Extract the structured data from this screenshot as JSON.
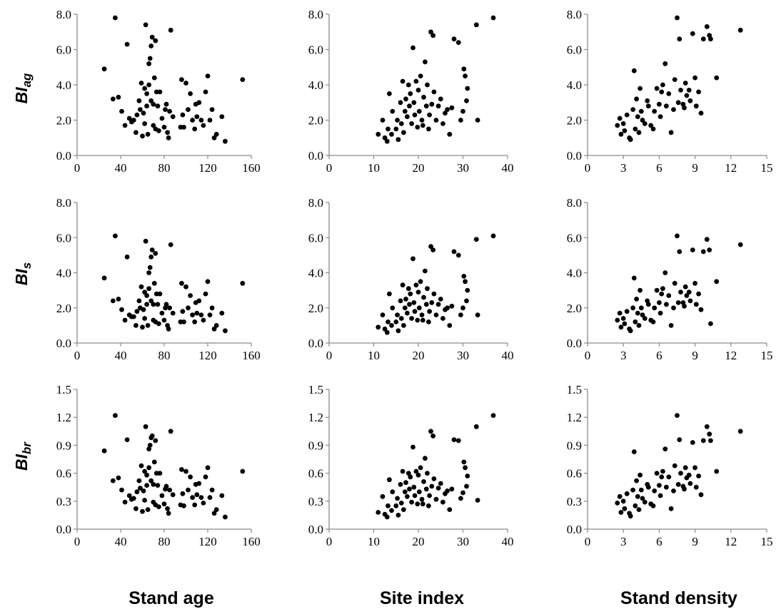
{
  "figure": {
    "row_labels": [
      {
        "main": "BI",
        "sub": "ag"
      },
      {
        "main": "BI",
        "sub": "s"
      },
      {
        "main": "BI",
        "sub": "br"
      }
    ],
    "column_titles": [
      "Stand age",
      "Site index",
      "Stand density"
    ]
  },
  "chart_data": [
    {
      "type": "scatter",
      "panel": "BIag vs Stand age",
      "row": 0,
      "col": 0,
      "xlabel": "",
      "ylabel": "BIag",
      "xlim": [
        0,
        160
      ],
      "ylim": [
        0,
        8
      ],
      "xticks": [
        "0",
        "40",
        "80",
        "120",
        "160"
      ],
      "yticks": [
        "0.0",
        "2.0",
        "4.0",
        "6.0",
        "8.0"
      ],
      "grid": false,
      "x": [
        25,
        33,
        35,
        38,
        41,
        44,
        46,
        48,
        50,
        52,
        54,
        55,
        57,
        58,
        59,
        60,
        61,
        62,
        62,
        63,
        64,
        64,
        65,
        66,
        66,
        67,
        68,
        68,
        69,
        70,
        70,
        71,
        72,
        72,
        73,
        74,
        75,
        76,
        78,
        80,
        81,
        82,
        83,
        84,
        85,
        86,
        88,
        95,
        96,
        97,
        98,
        100,
        102,
        104,
        106,
        108,
        109,
        110,
        112,
        114,
        116,
        118,
        120,
        122,
        124,
        126,
        128,
        133,
        136,
        152
      ],
      "y": [
        4.9,
        3.2,
        7.8,
        3.3,
        2.5,
        1.7,
        6.3,
        2.1,
        1.9,
        2.0,
        1.3,
        2.3,
        3.1,
        2.6,
        4.1,
        1.1,
        2.4,
        3.8,
        1.8,
        7.4,
        3.5,
        2.8,
        1.2,
        4.0,
        5.2,
        5.5,
        6.2,
        3.1,
        6.7,
        1.7,
        2.9,
        4.4,
        1.5,
        6.5,
        3.6,
        2.8,
        1.4,
        3.6,
        2.1,
        1.6,
        2.6,
        2.9,
        1.3,
        1.0,
        2.5,
        7.1,
        2.2,
        1.6,
        4.3,
        2.3,
        1.6,
        4.1,
        2.6,
        3.5,
        2.0,
        1.5,
        2.9,
        2.2,
        3.0,
        2.0,
        1.7,
        3.6,
        4.5,
        2.0,
        2.6,
        1.0,
        1.2,
        2.2,
        0.8,
        4.3
      ]
    },
    {
      "type": "scatter",
      "panel": "BIag vs Site index",
      "row": 0,
      "col": 1,
      "xlabel": "",
      "ylabel": "BIag",
      "xlim": [
        0,
        40
      ],
      "ylim": [
        0,
        8
      ],
      "xticks": [
        "0",
        "10",
        "20",
        "30",
        "40"
      ],
      "yticks": [
        "0.0",
        "2.0",
        "4.0",
        "6.0",
        "8.0"
      ],
      "grid": false,
      "x": [
        11.0,
        12.0,
        12.5,
        13.0,
        13.2,
        13.5,
        14.0,
        14.2,
        15.0,
        15.3,
        15.5,
        16.0,
        16.2,
        16.5,
        16.7,
        17.0,
        17.2,
        17.5,
        17.8,
        18.0,
        18.2,
        18.5,
        18.8,
        19.0,
        19.2,
        19.5,
        19.8,
        20.0,
        20.2,
        20.5,
        20.8,
        21.0,
        21.2,
        21.5,
        21.8,
        22.0,
        22.3,
        22.5,
        22.8,
        23.0,
        23.3,
        23.5,
        24.0,
        24.5,
        25.0,
        25.5,
        26.0,
        26.5,
        27.0,
        27.5,
        28.0,
        29.0,
        29.5,
        30.0,
        30.2,
        30.5,
        30.8,
        31.0,
        33.0,
        33.3,
        36.8
      ],
      "y": [
        1.2,
        2.0,
        1.0,
        0.8,
        1.5,
        3.5,
        1.2,
        2.5,
        1.5,
        2.0,
        0.9,
        3.0,
        1.8,
        4.2,
        1.3,
        2.5,
        3.2,
        2.2,
        4.0,
        2.8,
        3.5,
        1.8,
        6.1,
        3.0,
        2.3,
        4.2,
        1.6,
        3.7,
        2.5,
        4.5,
        2.0,
        1.7,
        3.3,
        5.3,
        2.8,
        4.0,
        1.5,
        2.3,
        7.0,
        2.9,
        6.8,
        3.6,
        2.0,
        2.8,
        3.2,
        1.8,
        2.4,
        2.6,
        1.2,
        2.7,
        6.6,
        6.4,
        2.0,
        2.5,
        4.9,
        4.5,
        3.1,
        3.8,
        7.4,
        2.0,
        7.8
      ]
    },
    {
      "type": "scatter",
      "panel": "BIag vs Stand density",
      "row": 0,
      "col": 2,
      "xlabel": "",
      "ylabel": "BIag",
      "xlim": [
        0,
        15
      ],
      "ylim": [
        0,
        8
      ],
      "xticks": [
        "0",
        "3",
        "6",
        "9",
        "12",
        "15"
      ],
      "yticks": [
        "0.0",
        "2.0",
        "4.0",
        "6.0",
        "8.0"
      ],
      "grid": false,
      "x": [
        2.5,
        2.7,
        2.8,
        3.0,
        3.1,
        3.3,
        3.5,
        3.6,
        3.8,
        3.9,
        4.0,
        4.1,
        4.2,
        4.3,
        4.4,
        4.5,
        4.6,
        4.8,
        5.0,
        5.1,
        5.3,
        5.5,
        5.6,
        5.8,
        6.0,
        6.1,
        6.2,
        6.3,
        6.5,
        6.6,
        6.8,
        7.0,
        7.2,
        7.3,
        7.5,
        7.6,
        7.7,
        7.8,
        8.0,
        8.1,
        8.2,
        8.3,
        8.5,
        8.6,
        8.8,
        9.0,
        9.1,
        9.3,
        9.5,
        9.7,
        10.0,
        10.2,
        10.3,
        10.8,
        12.8
      ],
      "y": [
        1.7,
        2.1,
        1.2,
        1.8,
        1.4,
        2.3,
        1.0,
        0.9,
        2.6,
        4.8,
        1.5,
        3.2,
        2.2,
        1.3,
        3.8,
        2.5,
        2.0,
        1.8,
        3.1,
        2.8,
        1.7,
        1.5,
        2.5,
        3.8,
        2.9,
        2.2,
        3.6,
        4.0,
        5.2,
        2.8,
        3.5,
        1.3,
        2.6,
        4.3,
        7.8,
        3.0,
        6.6,
        3.7,
        2.9,
        2.7,
        4.1,
        3.4,
        3.7,
        3.1,
        6.9,
        4.4,
        2.8,
        3.6,
        2.4,
        6.6,
        7.3,
        6.8,
        6.6,
        4.4,
        7.1
      ]
    },
    {
      "type": "scatter",
      "panel": "BIs vs Stand age",
      "row": 1,
      "col": 0,
      "xlabel": "",
      "ylabel": "BIs",
      "xlim": [
        0,
        160
      ],
      "ylim": [
        0,
        8
      ],
      "xticks": [
        "0",
        "40",
        "80",
        "120",
        "160"
      ],
      "yticks": [
        "0.0",
        "2.0",
        "4.0",
        "6.0",
        "8.0"
      ],
      "grid": false,
      "x": [
        25,
        33,
        35,
        38,
        41,
        44,
        46,
        48,
        50,
        52,
        54,
        55,
        57,
        58,
        59,
        60,
        61,
        62,
        62,
        63,
        64,
        64,
        65,
        66,
        66,
        67,
        68,
        68,
        69,
        70,
        70,
        71,
        72,
        72,
        73,
        74,
        75,
        76,
        78,
        80,
        81,
        82,
        83,
        84,
        85,
        86,
        88,
        95,
        96,
        97,
        98,
        100,
        102,
        104,
        106,
        108,
        109,
        110,
        112,
        114,
        116,
        118,
        120,
        122,
        124,
        126,
        128,
        133,
        136,
        152
      ],
      "y": [
        3.7,
        2.4,
        6.1,
        2.5,
        1.9,
        1.3,
        4.9,
        1.6,
        1.5,
        1.5,
        1.0,
        1.8,
        2.4,
        2.0,
        3.2,
        0.9,
        1.9,
        2.9,
        1.4,
        5.8,
        2.7,
        2.2,
        1.0,
        3.1,
        4.0,
        4.3,
        4.9,
        2.4,
        5.3,
        1.3,
        2.2,
        3.4,
        1.2,
        5.1,
        2.8,
        2.2,
        1.1,
        2.8,
        1.7,
        1.3,
        2.0,
        2.2,
        1.0,
        0.8,
        2.0,
        5.6,
        1.7,
        1.2,
        3.4,
        1.8,
        1.2,
        3.2,
        2.0,
        2.7,
        1.6,
        1.2,
        2.3,
        1.7,
        2.4,
        1.6,
        1.3,
        2.8,
        3.5,
        1.6,
        2.0,
        0.8,
        1.0,
        1.7,
        0.7,
        3.4
      ]
    },
    {
      "type": "scatter",
      "panel": "BIs vs Site index",
      "row": 1,
      "col": 1,
      "xlabel": "",
      "ylabel": "BIs",
      "xlim": [
        0,
        40
      ],
      "ylim": [
        0,
        8
      ],
      "xticks": [
        "0",
        "10",
        "20",
        "30",
        "40"
      ],
      "yticks": [
        "0.0",
        "2.0",
        "4.0",
        "6.0",
        "8.0"
      ],
      "grid": false,
      "x": [
        11.0,
        12.0,
        12.5,
        13.0,
        13.2,
        13.5,
        14.0,
        14.2,
        15.0,
        15.3,
        15.5,
        16.0,
        16.2,
        16.5,
        16.7,
        17.0,
        17.2,
        17.5,
        17.8,
        18.0,
        18.2,
        18.5,
        18.8,
        19.0,
        19.2,
        19.5,
        19.8,
        20.0,
        20.2,
        20.5,
        20.8,
        21.0,
        21.2,
        21.5,
        21.8,
        22.0,
        22.3,
        22.5,
        22.8,
        23.0,
        23.3,
        23.5,
        24.0,
        24.5,
        25.0,
        25.5,
        26.0,
        26.5,
        27.0,
        27.5,
        28.0,
        29.0,
        29.5,
        30.0,
        30.2,
        30.5,
        30.8,
        31.0,
        33.0,
        33.3,
        36.8
      ],
      "y": [
        0.9,
        1.6,
        0.8,
        0.6,
        1.2,
        2.8,
        1.0,
        2.0,
        1.2,
        1.6,
        0.7,
        2.4,
        1.4,
        3.3,
        1.0,
        2.0,
        2.5,
        1.7,
        3.1,
        2.2,
        2.8,
        1.4,
        4.8,
        2.3,
        1.8,
        3.3,
        1.3,
        2.9,
        2.0,
        3.5,
        1.6,
        1.3,
        2.6,
        4.1,
        2.2,
        3.1,
        1.2,
        1.8,
        5.5,
        2.3,
        5.3,
        2.8,
        1.6,
        2.2,
        2.5,
        1.4,
        1.9,
        2.0,
        1.0,
        2.1,
        5.2,
        5.0,
        1.6,
        2.0,
        3.8,
        3.5,
        2.4,
        3.0,
        5.9,
        1.6,
        6.1
      ]
    },
    {
      "type": "scatter",
      "panel": "BIs vs Stand density",
      "row": 1,
      "col": 2,
      "xlabel": "",
      "ylabel": "BIs",
      "xlim": [
        0,
        15
      ],
      "ylim": [
        0,
        8
      ],
      "xticks": [
        "0",
        "3",
        "6",
        "9",
        "12",
        "15"
      ],
      "yticks": [
        "0.0",
        "2.0",
        "4.0",
        "6.0",
        "8.0"
      ],
      "grid": false,
      "x": [
        2.5,
        2.7,
        2.8,
        3.0,
        3.1,
        3.3,
        3.5,
        3.6,
        3.8,
        3.9,
        4.0,
        4.1,
        4.2,
        4.3,
        4.4,
        4.5,
        4.6,
        4.8,
        5.0,
        5.1,
        5.3,
        5.5,
        5.6,
        5.8,
        6.0,
        6.1,
        6.2,
        6.3,
        6.5,
        6.6,
        6.8,
        7.0,
        7.2,
        7.3,
        7.5,
        7.6,
        7.7,
        7.8,
        8.0,
        8.1,
        8.2,
        8.3,
        8.5,
        8.6,
        8.8,
        9.0,
        9.1,
        9.3,
        9.5,
        9.7,
        10.0,
        10.2,
        10.3,
        10.8,
        12.8
      ],
      "y": [
        1.3,
        1.7,
        0.9,
        1.4,
        1.1,
        1.8,
        0.8,
        0.7,
        2.0,
        3.7,
        1.2,
        2.5,
        1.7,
        1.0,
        3.0,
        2.0,
        1.6,
        1.4,
        2.4,
        2.2,
        1.3,
        1.2,
        2.0,
        3.0,
        2.3,
        1.7,
        2.8,
        3.1,
        4.0,
        2.2,
        2.7,
        1.0,
        2.0,
        3.4,
        6.1,
        2.3,
        5.2,
        2.9,
        2.3,
        2.1,
        3.2,
        2.7,
        2.9,
        2.4,
        5.3,
        3.4,
        2.2,
        2.8,
        1.9,
        5.2,
        5.9,
        5.3,
        1.1,
        3.5,
        5.6
      ]
    },
    {
      "type": "scatter",
      "panel": "BIbr vs Stand age",
      "row": 2,
      "col": 0,
      "xlabel": "",
      "ylabel": "BIbr",
      "xlim": [
        0,
        160
      ],
      "ylim": [
        0,
        1.5
      ],
      "xticks": [
        "0",
        "40",
        "80",
        "120",
        "160"
      ],
      "yticks": [
        "0.0",
        "0.3",
        "0.6",
        "0.9",
        "1.2",
        "1.5"
      ],
      "grid": false,
      "x": [
        25,
        33,
        35,
        38,
        41,
        44,
        46,
        48,
        50,
        52,
        54,
        55,
        57,
        58,
        59,
        60,
        61,
        62,
        62,
        63,
        64,
        64,
        65,
        66,
        66,
        67,
        68,
        68,
        69,
        70,
        70,
        71,
        72,
        72,
        73,
        74,
        75,
        76,
        78,
        80,
        81,
        82,
        83,
        84,
        85,
        86,
        88,
        95,
        96,
        97,
        98,
        100,
        102,
        104,
        106,
        108,
        109,
        110,
        112,
        114,
        116,
        118,
        120,
        122,
        124,
        126,
        128,
        133,
        136,
        152
      ],
      "y": [
        0.84,
        0.52,
        1.22,
        0.55,
        0.42,
        0.29,
        0.96,
        0.36,
        0.32,
        0.33,
        0.22,
        0.4,
        0.52,
        0.44,
        0.68,
        0.19,
        0.41,
        0.62,
        0.31,
        1.1,
        0.58,
        0.47,
        0.21,
        0.66,
        0.86,
        0.9,
        0.98,
        0.52,
        1.0,
        0.29,
        0.48,
        0.72,
        0.26,
        0.95,
        0.6,
        0.47,
        0.24,
        0.6,
        0.36,
        0.27,
        0.43,
        0.46,
        0.22,
        0.17,
        0.42,
        1.05,
        0.37,
        0.26,
        0.64,
        0.38,
        0.25,
        0.62,
        0.42,
        0.56,
        0.34,
        0.26,
        0.48,
        0.37,
        0.49,
        0.34,
        0.28,
        0.56,
        0.66,
        0.34,
        0.42,
        0.17,
        0.21,
        0.36,
        0.13,
        0.62
      ]
    },
    {
      "type": "scatter",
      "panel": "BIbr vs Site index",
      "row": 2,
      "col": 1,
      "xlabel": "",
      "ylabel": "BIbr",
      "xlim": [
        0,
        40
      ],
      "ylim": [
        0,
        1.5
      ],
      "xticks": [
        "0",
        "10",
        "20",
        "30",
        "40"
      ],
      "yticks": [
        "0.0",
        "0.3",
        "0.6",
        "0.9",
        "1.2",
        "1.5"
      ],
      "grid": false,
      "x": [
        11.0,
        12.0,
        12.5,
        13.0,
        13.2,
        13.5,
        14.0,
        14.2,
        15.0,
        15.3,
        15.5,
        16.0,
        16.2,
        16.5,
        16.7,
        17.0,
        17.2,
        17.5,
        17.8,
        18.0,
        18.2,
        18.5,
        18.8,
        19.0,
        19.2,
        19.5,
        19.8,
        20.0,
        20.2,
        20.5,
        20.8,
        21.0,
        21.2,
        21.5,
        21.8,
        22.0,
        22.3,
        22.5,
        22.8,
        23.0,
        23.3,
        23.5,
        24.0,
        24.5,
        25.0,
        25.5,
        26.0,
        26.5,
        27.0,
        27.5,
        28.0,
        29.0,
        29.5,
        30.0,
        30.2,
        30.5,
        30.8,
        31.0,
        33.0,
        33.3,
        36.8
      ],
      "y": [
        0.18,
        0.35,
        0.16,
        0.13,
        0.25,
        0.53,
        0.2,
        0.4,
        0.25,
        0.33,
        0.15,
        0.48,
        0.28,
        0.62,
        0.21,
        0.4,
        0.5,
        0.35,
        0.6,
        0.43,
        0.56,
        0.29,
        0.88,
        0.45,
        0.36,
        0.62,
        0.27,
        0.58,
        0.4,
        0.66,
        0.32,
        0.27,
        0.51,
        0.76,
        0.43,
        0.6,
        0.25,
        0.36,
        1.05,
        0.46,
        1.0,
        0.54,
        0.32,
        0.44,
        0.49,
        0.29,
        0.38,
        0.41,
        0.21,
        0.43,
        0.96,
        0.95,
        0.33,
        0.39,
        0.72,
        0.66,
        0.46,
        0.57,
        1.1,
        0.31,
        1.22
      ]
    },
    {
      "type": "scatter",
      "panel": "BIbr vs Stand density",
      "row": 2,
      "col": 2,
      "xlabel": "",
      "ylabel": "BIbr",
      "xlim": [
        0,
        15
      ],
      "ylim": [
        0,
        1.5
      ],
      "xticks": [
        "0",
        "3",
        "6",
        "9",
        "12",
        "15"
      ],
      "yticks": [
        "0.0",
        "0.3",
        "0.6",
        "0.9",
        "1.2",
        "1.5"
      ],
      "grid": false,
      "x": [
        2.5,
        2.7,
        2.8,
        3.0,
        3.1,
        3.3,
        3.5,
        3.6,
        3.8,
        3.9,
        4.0,
        4.1,
        4.2,
        4.3,
        4.4,
        4.5,
        4.6,
        4.8,
        5.0,
        5.1,
        5.3,
        5.5,
        5.6,
        5.8,
        6.0,
        6.1,
        6.2,
        6.3,
        6.5,
        6.6,
        6.8,
        7.0,
        7.2,
        7.3,
        7.5,
        7.6,
        7.7,
        7.8,
        8.0,
        8.1,
        8.2,
        8.3,
        8.5,
        8.6,
        8.8,
        9.0,
        9.1,
        9.3,
        9.5,
        9.7,
        10.0,
        10.2,
        10.3,
        10.8,
        12.8
      ],
      "y": [
        0.28,
        0.35,
        0.18,
        0.3,
        0.22,
        0.38,
        0.17,
        0.14,
        0.42,
        0.83,
        0.25,
        0.52,
        0.35,
        0.21,
        0.58,
        0.42,
        0.33,
        0.29,
        0.48,
        0.45,
        0.27,
        0.25,
        0.41,
        0.6,
        0.47,
        0.36,
        0.56,
        0.62,
        0.86,
        0.45,
        0.56,
        0.22,
        0.41,
        0.68,
        1.22,
        0.48,
        0.96,
        0.6,
        0.46,
        0.43,
        0.66,
        0.55,
        0.58,
        0.49,
        0.93,
        0.66,
        0.45,
        0.57,
        0.37,
        0.95,
        1.1,
        1.02,
        0.95,
        0.62,
        1.05
      ]
    }
  ]
}
